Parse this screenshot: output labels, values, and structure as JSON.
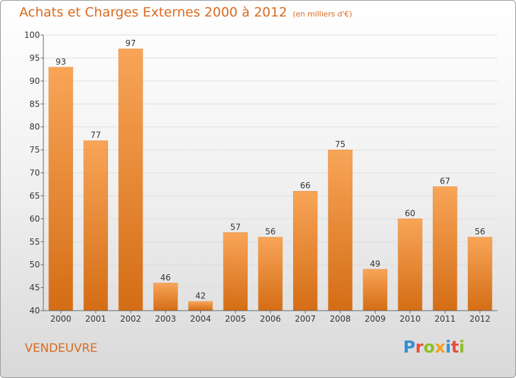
{
  "title": "Achats et Charges Externes 2000 à 2012",
  "unit": "(en milliers d'€)",
  "commune": "VENDEUVRE",
  "logo": {
    "text": "Proxiti",
    "letters": [
      "P",
      "r",
      "o",
      "x",
      "i",
      "t",
      "i"
    ],
    "colors": [
      "#2d8fd3",
      "#e84d3c",
      "#8cbf26",
      "#f3a01b",
      "#2d8fd3",
      "#e84d3c",
      "#8cbf26"
    ]
  },
  "chart_data": {
    "type": "bar",
    "categories": [
      "2000",
      "2001",
      "2002",
      "2003",
      "2004",
      "2005",
      "2006",
      "2007",
      "2008",
      "2009",
      "2010",
      "2011",
      "2012"
    ],
    "values": [
      93,
      77,
      97,
      46,
      42,
      57,
      56,
      66,
      75,
      49,
      60,
      67,
      56
    ],
    "ylim": [
      40,
      100
    ],
    "yticks": [
      40,
      45,
      50,
      55,
      60,
      65,
      70,
      75,
      80,
      85,
      90,
      95,
      100
    ],
    "grid": true,
    "bar_color": "#f0923a",
    "text_color": "#333333"
  }
}
